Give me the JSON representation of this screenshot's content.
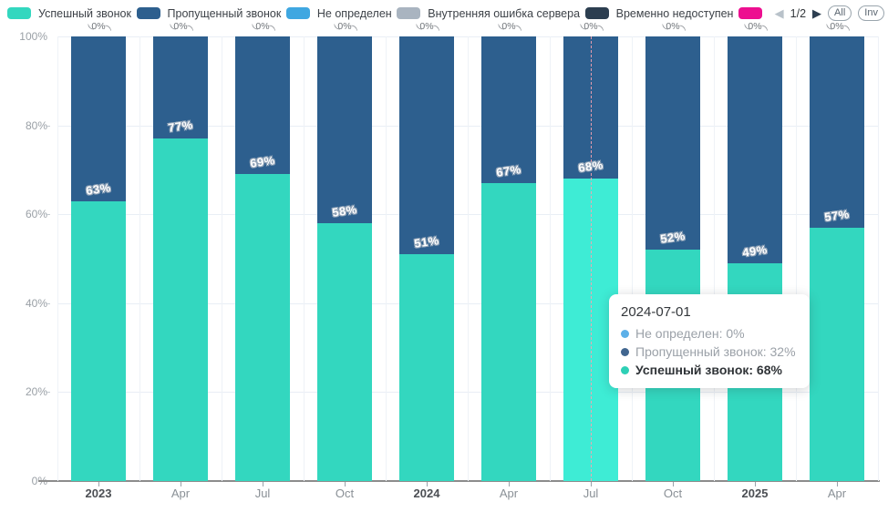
{
  "legend": {
    "items": [
      {
        "label": "Успешный звонок",
        "color": "#33d7bf"
      },
      {
        "label": "Пропущенный звонок",
        "color": "#2d5f8e"
      },
      {
        "label": "Не определен",
        "color": "#3fa7e1"
      },
      {
        "label": "Внутренняя ошибка сервера",
        "color": "#a9b4c0"
      },
      {
        "label": "Временно недоступен",
        "color": "#2c3e50"
      },
      {
        "label": "",
        "color": "#ed0f90"
      }
    ],
    "pager": {
      "current": "1/2",
      "prev_icon": "◀",
      "next_icon": "▶",
      "all_label": "All",
      "inv_label": "Inv"
    }
  },
  "chart_data": {
    "type": "bar",
    "stacked": true,
    "percent_stacked": true,
    "categories": [
      "2023",
      "Apr",
      "Jul",
      "Oct",
      "2024",
      "Apr",
      "Jul",
      "Oct",
      "2025",
      "Apr"
    ],
    "year_flags": [
      1,
      0,
      0,
      0,
      1,
      0,
      0,
      0,
      1,
      0
    ],
    "series": [
      {
        "name": "Успешный звонок",
        "color": "#33d7bf",
        "values": [
          63,
          77,
          69,
          58,
          51,
          67,
          68,
          52,
          49,
          57
        ]
      },
      {
        "name": "Пропущенный звонок",
        "color": "#2d5f8e",
        "values": [
          37,
          23,
          31,
          42,
          49,
          33,
          32,
          48,
          51,
          43
        ]
      },
      {
        "name": "Не определен",
        "color": "#3fa7e1",
        "values": [
          0,
          0,
          0,
          0,
          0,
          0,
          0,
          0,
          0,
          0
        ]
      },
      {
        "name": "Внутренняя ошибка сервера",
        "color": "#a9b4c0",
        "values": [
          0,
          0,
          0,
          0,
          0,
          0,
          0,
          0,
          0,
          0
        ]
      },
      {
        "name": "Временно недоступен",
        "color": "#2c3e50",
        "values": [
          0,
          0,
          0,
          0,
          0,
          0,
          0,
          0,
          0,
          0
        ]
      }
    ],
    "bar_labels": [
      "63%",
      "77%",
      "69%",
      "58%",
      "51%",
      "67%",
      "68%",
      "52%",
      "49%",
      "57%"
    ],
    "zero_label": {
      "text": "0%",
      "left_mark": "(",
      "right_mark": ")"
    },
    "y_ticks": [
      "100%",
      "80%",
      "60%",
      "40%",
      "20%",
      "0%"
    ],
    "ylim": [
      0,
      100
    ],
    "grid": true,
    "legend_position": "top",
    "highlighted_index": 6,
    "highlight_color": "#3eecd5"
  },
  "tooltip": {
    "title": "2024-07-01",
    "rows": [
      {
        "label": "Не определен",
        "value": "0%",
        "color": "#5cb0e8",
        "bold": false
      },
      {
        "label": "Пропущенный звонок",
        "value": "32%",
        "color": "#41668f",
        "bold": false
      },
      {
        "label": "Успешный звонок",
        "value": "68%",
        "color": "#2ed0b6",
        "bold": true
      }
    ]
  }
}
